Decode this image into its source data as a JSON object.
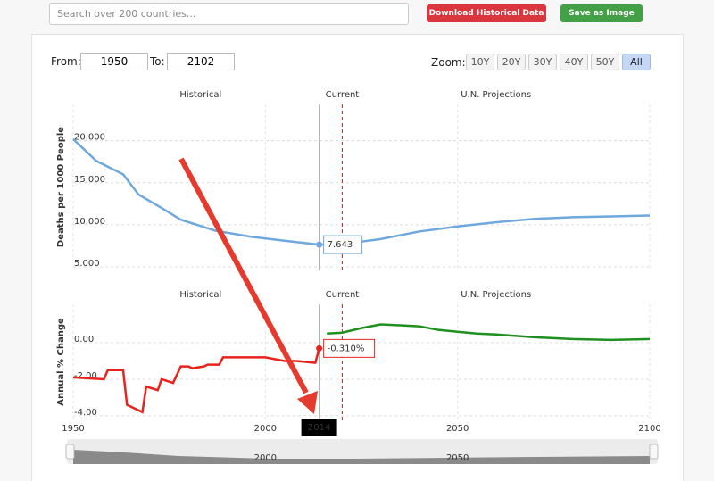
{
  "ui": {
    "search_placeholder": "Search over 200 countries...",
    "buttons": [
      "Download Historical Data",
      "Save as Image"
    ],
    "from_label": "From:",
    "from_value": 1950,
    "to_label": "To:",
    "to_value": 2102,
    "zoom_label": "Zoom:",
    "zoom_options": [
      "10Y",
      "20Y",
      "30Y",
      "40Y",
      "50Y",
      "All"
    ],
    "zoom_active": "All"
  },
  "chart_data": [
    {
      "type": "line",
      "y_label": "Deaths per 1000 People",
      "sections": [
        "Historical",
        "Current",
        "U.N. Projections"
      ],
      "current_x": 2014,
      "projection_start": 2020,
      "x": [
        1950,
        1956,
        1963,
        1967,
        1973,
        1978,
        1987,
        1996,
        2005,
        2014,
        2020,
        2030,
        2040,
        2050,
        2060,
        2070,
        2080,
        2090,
        2100
      ],
      "series": [
        {
          "color": "#6fa8dc",
          "values": [
            20.2,
            17.6,
            16.0,
            13.6,
            12.0,
            10.6,
            9.3,
            8.6,
            8.1,
            7.643,
            7.7,
            8.3,
            9.2,
            9.8,
            10.3,
            10.7,
            10.9,
            11.0,
            11.1
          ],
          "value_labels": [
            null,
            null,
            null,
            null,
            null,
            null,
            null,
            null,
            null,
            "7.643",
            null,
            null,
            null,
            null,
            null,
            null,
            null,
            null,
            null
          ]
        }
      ],
      "xlim": [
        1950,
        2100
      ],
      "xticks": [
        1950,
        2000,
        2050,
        2100
      ],
      "ylim": [
        5,
        24
      ],
      "yticks": [
        {
          "value": 5,
          "label": "5.000"
        },
        {
          "value": 10,
          "label": "10.000"
        },
        {
          "value": 15,
          "label": "15.000"
        },
        {
          "value": 20,
          "label": "20.000"
        }
      ],
      "grid": true
    },
    {
      "type": "line",
      "y_label": "Annual % Change",
      "sections": [
        "Historical",
        "Current",
        "U.N. Projections"
      ],
      "current_x": 2014,
      "projection_start": 2020,
      "x": [
        1950,
        1958,
        1959,
        1963,
        1964,
        1968,
        1969,
        1972,
        1973,
        1976,
        1978,
        1980,
        1981,
        1984,
        1985,
        1988,
        1989,
        2000,
        2005,
        2008,
        2013,
        2014,
        2016,
        2020,
        2025,
        2030,
        2035,
        2040,
        2045,
        2050,
        2055,
        2060,
        2070,
        2080,
        2090,
        2100
      ],
      "series": [
        {
          "color": "#e8221c",
          "values": [
            -1.9,
            -2.0,
            -1.5,
            -1.5,
            -3.4,
            -3.8,
            -2.4,
            -2.6,
            -2.0,
            -2.2,
            -1.3,
            -1.3,
            -1.4,
            -1.3,
            -1.2,
            -1.2,
            -0.8,
            -0.8,
            -1.0,
            -1.0,
            -1.1,
            -0.31,
            null,
            null,
            null,
            null,
            null,
            null,
            null,
            null,
            null,
            null,
            null,
            null,
            null,
            null
          ],
          "value_labels": [
            null,
            null,
            null,
            null,
            null,
            null,
            null,
            null,
            null,
            null,
            null,
            null,
            null,
            null,
            null,
            null,
            null,
            null,
            null,
            null,
            null,
            "-0.310%",
            null,
            null,
            null,
            null,
            null,
            null,
            null,
            null,
            null,
            null,
            null,
            null,
            null,
            null
          ]
        },
        {
          "color": "#1f8f1f",
          "values": [
            null,
            null,
            null,
            null,
            null,
            null,
            null,
            null,
            null,
            null,
            null,
            null,
            null,
            null,
            null,
            null,
            null,
            null,
            null,
            null,
            null,
            null,
            0.5,
            0.55,
            0.8,
            1.0,
            0.95,
            0.9,
            0.7,
            0.6,
            0.5,
            0.45,
            0.3,
            0.2,
            0.15,
            0.2
          ]
        }
      ],
      "xlim": [
        1950,
        2100
      ],
      "xticks": [
        1950,
        2000,
        2050,
        2100
      ],
      "ylim": [
        -4.2,
        2.1
      ],
      "yticks": [
        {
          "value": -4,
          "label": "-4.00"
        },
        {
          "value": -2,
          "label": "-2.00"
        },
        {
          "value": 0,
          "label": "0.00"
        }
      ],
      "grid": true
    }
  ]
}
